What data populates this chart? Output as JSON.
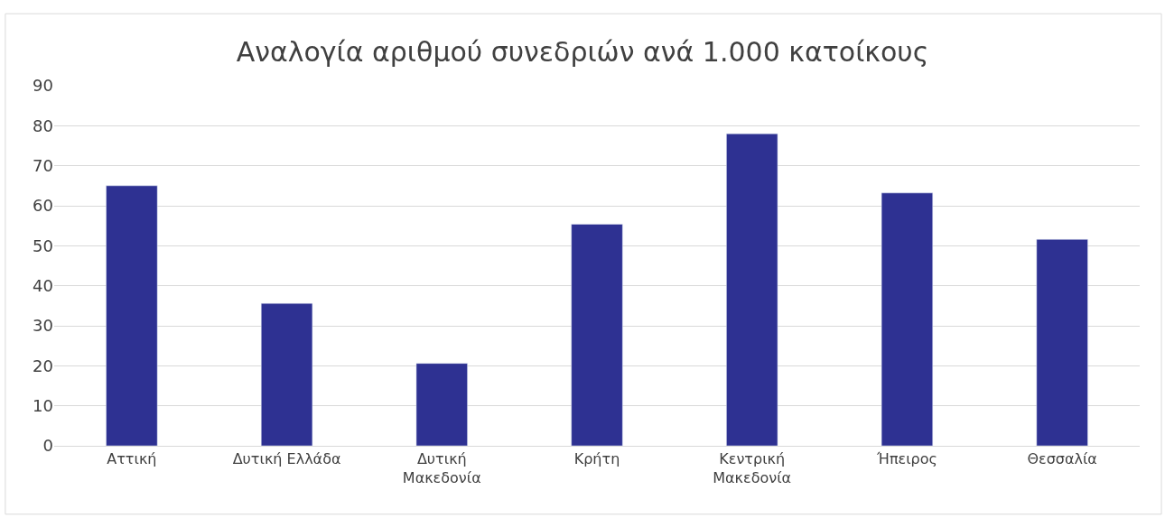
{
  "chart_data": {
    "type": "bar",
    "title": "Αναλογία αριθμού συνεδριών ανά 1.000 κατοίκους",
    "categories": [
      "Αττική",
      "Δυτική Ελλάδα",
      "Δυτική Μακεδονία",
      "Κρήτη",
      "Κεντρική Μακεδονία",
      "Ήπειρος",
      "Θεσσαλία"
    ],
    "values": [
      65,
      35.6,
      20.6,
      55.4,
      78,
      63.2,
      51.6
    ],
    "color": "#2e3192",
    "ylim": [
      0,
      90
    ],
    "yticks": [
      0,
      10,
      20,
      30,
      40,
      50,
      60,
      70,
      80,
      90
    ],
    "grid": "y"
  }
}
